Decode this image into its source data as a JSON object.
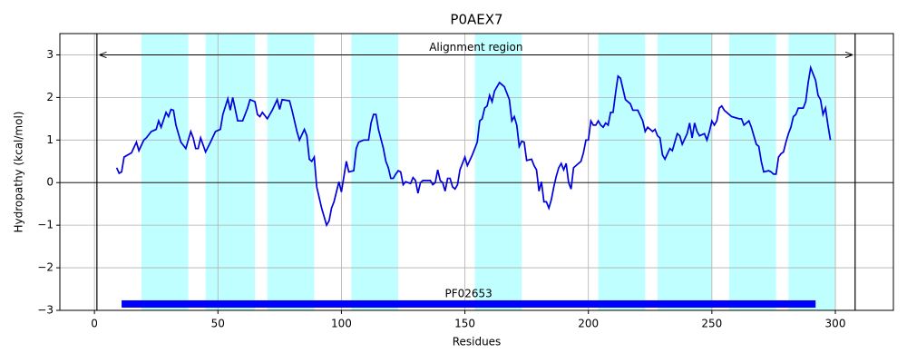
{
  "chart_data": {
    "type": "line",
    "title": "P0AEX7",
    "x_label": "Residues",
    "y_label": "Hydropathy (kcal/mol)",
    "xlim": [
      -14,
      323.5
    ],
    "ylim": [
      -3,
      3.5
    ],
    "xticks": [
      0,
      50,
      100,
      150,
      200,
      250,
      300
    ],
    "yticks": [
      {
        "value": -3,
        "label": "−3"
      },
      {
        "value": -2,
        "label": "−2"
      },
      {
        "value": -1,
        "label": "−1"
      },
      0,
      1,
      2,
      3
    ],
    "grid": true,
    "hline": 0,
    "vlines": [
      1,
      308
    ],
    "highlight_color": "#bfffff",
    "highlight_spans": [
      [
        19,
        38
      ],
      [
        45,
        65
      ],
      [
        70,
        89
      ],
      [
        104,
        123
      ],
      [
        154,
        173
      ],
      [
        204,
        223
      ],
      [
        228,
        250
      ],
      [
        257,
        276
      ],
      [
        281,
        300
      ]
    ],
    "annotations": [
      {
        "text": "Alignment region",
        "x_start": 2,
        "x_end": 307,
        "y": 3
      }
    ],
    "domains": [
      {
        "label": "PF02653",
        "start": 11,
        "end": 292,
        "y": -2.85,
        "color": "#0000ff"
      }
    ],
    "x": [
      9,
      10,
      11,
      12,
      15,
      17,
      18,
      20,
      21,
      23,
      25,
      26,
      27,
      29,
      30,
      31,
      32,
      33,
      35,
      37,
      39,
      40,
      41,
      42,
      43,
      45,
      47,
      49,
      51,
      52,
      54,
      55,
      56,
      58,
      60,
      62,
      63,
      65,
      66,
      67,
      68,
      70,
      72,
      74,
      75,
      76,
      79,
      80,
      82,
      83,
      85,
      86,
      87,
      88,
      89,
      90,
      92,
      94,
      95,
      96,
      97,
      99,
      100,
      102,
      103,
      105,
      106,
      107,
      109,
      111,
      112,
      113,
      114,
      115,
      117,
      118,
      119,
      120,
      121,
      122,
      123,
      124,
      125,
      126,
      128,
      129,
      130,
      131,
      132,
      133,
      136,
      137,
      138,
      139,
      140,
      141,
      142,
      143,
      144,
      145,
      146,
      147,
      148,
      150,
      151,
      153,
      154,
      155,
      156,
      157,
      158,
      159,
      160,
      161,
      162,
      164,
      165,
      166,
      167,
      168,
      169,
      170,
      171,
      172,
      173,
      174,
      175,
      177,
      178,
      179,
      180,
      181,
      182,
      183,
      184,
      185,
      186,
      187,
      188,
      189,
      190,
      191,
      192,
      193,
      194,
      196,
      197,
      198,
      199,
      200,
      201,
      202,
      203,
      204,
      205,
      206,
      207,
      208,
      209,
      210,
      211,
      212,
      213,
      214,
      215,
      217,
      218,
      220,
      222,
      223,
      224,
      226,
      227,
      228,
      229,
      230,
      231,
      233,
      234,
      236,
      237,
      238,
      240,
      241,
      242,
      243,
      244,
      245,
      247,
      248,
      249,
      250,
      251,
      252,
      253,
      254,
      255,
      256,
      258,
      261,
      262,
      263,
      265,
      266,
      267,
      268,
      269,
      270,
      271,
      273,
      274,
      275,
      276,
      277,
      278,
      279,
      280,
      281,
      282,
      283,
      284,
      285,
      287,
      288,
      289,
      290,
      291,
      292,
      293,
      294,
      295,
      296,
      297,
      298
    ],
    "series": [
      {
        "name": "Hydropathy",
        "color": "#0000dd",
        "values": [
          0.35,
          0.22,
          0.25,
          0.6,
          0.7,
          0.95,
          0.75,
          1.0,
          1.05,
          1.2,
          1.25,
          1.45,
          1.3,
          1.65,
          1.55,
          1.72,
          1.7,
          1.35,
          0.95,
          0.8,
          1.2,
          1.05,
          0.8,
          0.8,
          1.05,
          0.72,
          0.95,
          1.2,
          1.25,
          1.6,
          1.97,
          1.7,
          2.0,
          1.45,
          1.45,
          1.75,
          1.95,
          1.9,
          1.6,
          1.55,
          1.65,
          1.5,
          1.7,
          1.95,
          1.72,
          1.95,
          1.92,
          1.7,
          1.2,
          1.0,
          1.25,
          1.1,
          0.55,
          0.5,
          0.6,
          -0.1,
          -0.6,
          -1.0,
          -0.9,
          -0.6,
          -0.45,
          0.02,
          -0.22,
          0.5,
          0.25,
          0.28,
          0.8,
          0.95,
          1.0,
          1.0,
          1.4,
          1.6,
          1.6,
          1.25,
          0.8,
          0.5,
          0.35,
          0.1,
          0.1,
          0.2,
          0.28,
          0.25,
          -0.05,
          0.02,
          -0.02,
          0.12,
          0.05,
          -0.25,
          0.0,
          0.05,
          0.05,
          -0.05,
          0.0,
          0.3,
          0.05,
          0.0,
          -0.2,
          0.1,
          0.1,
          -0.1,
          -0.15,
          -0.05,
          0.3,
          0.6,
          0.4,
          0.65,
          0.8,
          0.95,
          1.45,
          1.5,
          1.75,
          1.8,
          2.05,
          1.9,
          2.15,
          2.35,
          2.3,
          2.25,
          2.1,
          1.95,
          1.45,
          1.55,
          1.35,
          0.85,
          0.97,
          0.95,
          0.52,
          0.55,
          0.4,
          0.3,
          -0.2,
          0.02,
          -0.45,
          -0.45,
          -0.6,
          -0.4,
          -0.1,
          0.15,
          0.35,
          0.45,
          0.3,
          0.45,
          0.0,
          -0.15,
          0.35,
          0.45,
          0.5,
          0.7,
          1.0,
          1.0,
          1.45,
          1.35,
          1.35,
          1.45,
          1.35,
          1.3,
          1.4,
          1.35,
          1.65,
          1.65,
          2.1,
          2.5,
          2.45,
          2.2,
          1.95,
          1.85,
          1.7,
          1.7,
          1.45,
          1.2,
          1.3,
          1.2,
          1.25,
          1.1,
          1.05,
          0.65,
          0.55,
          0.8,
          0.75,
          1.15,
          1.1,
          0.9,
          1.15,
          1.4,
          1.05,
          1.4,
          1.2,
          1.1,
          1.15,
          1.0,
          1.2,
          1.45,
          1.35,
          1.45,
          1.75,
          1.8,
          1.7,
          1.65,
          1.55,
          1.5,
          1.5,
          1.35,
          1.45,
          1.3,
          1.1,
          0.9,
          0.85,
          0.5,
          0.25,
          0.28,
          0.25,
          0.2,
          0.2,
          0.6,
          0.68,
          0.72,
          0.95,
          1.15,
          1.3,
          1.55,
          1.6,
          1.75,
          1.75,
          1.9,
          2.35,
          2.7,
          2.55,
          2.4,
          2.05,
          1.95,
          1.6,
          1.75,
          1.35,
          1.0
        ]
      }
    ]
  }
}
